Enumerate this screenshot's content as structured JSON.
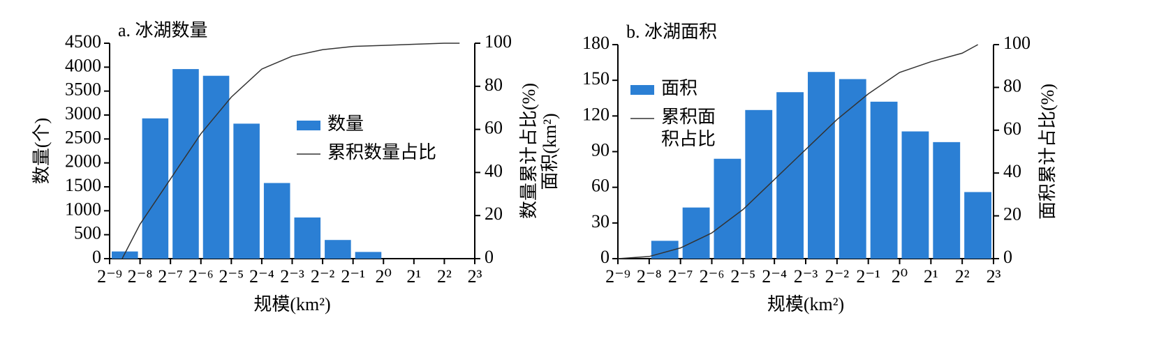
{
  "chart_data": [
    {
      "type": "histogram",
      "title": "a. 冰湖数量",
      "xlabel": "规模(km²)",
      "ylabel": "数量(个)",
      "y2label": "数量累计占比(%)",
      "xscale": "log2",
      "legend": "center right",
      "bins": [
        0.001953125,
        0.00390625,
        0.0078125,
        0.015625,
        0.03125,
        0.0625,
        0.125,
        0.25,
        0.5,
        1,
        2,
        4,
        8
      ],
      "xlim": [
        0.001953125,
        8
      ],
      "xticks": [
        {
          "value": 0.001953125,
          "label": "2⁻⁹"
        },
        {
          "value": 0.00390625,
          "label": "2⁻⁸"
        },
        {
          "value": 0.0078125,
          "label": "2⁻⁷"
        },
        {
          "value": 0.015625,
          "label": "2⁻⁶"
        },
        {
          "value": 0.03125,
          "label": "2⁻⁵"
        },
        {
          "value": 0.0625,
          "label": "2⁻⁴"
        },
        {
          "value": 0.125,
          "label": "2⁻³"
        },
        {
          "value": 0.25,
          "label": "2⁻²"
        },
        {
          "value": 0.5,
          "label": "2⁻¹"
        },
        {
          "value": 1,
          "label": "2⁰"
        },
        {
          "value": 2,
          "label": "2¹"
        },
        {
          "value": 4,
          "label": "2²"
        },
        {
          "value": 8,
          "label": "2³"
        }
      ],
      "ylim": [
        0,
        4500
      ],
      "yticks": [
        0,
        500,
        1000,
        1500,
        2000,
        2500,
        3000,
        3500,
        4000,
        4500
      ],
      "y2lim": [
        0,
        100
      ],
      "y2ticks": [
        0,
        20,
        40,
        60,
        80,
        100
      ],
      "series": [
        {
          "name": "数量",
          "color": "#2b7fd4",
          "values": [
            150,
            2930,
            3960,
            3820,
            2820,
            1580,
            860,
            390,
            140,
            0,
            0,
            0
          ]
        },
        {
          "name": "累积数量占比",
          "color": "#333333",
          "axis": "y2",
          "x": [
            0.0026,
            0.00390625,
            0.0078125,
            0.015625,
            0.03125,
            0.0625,
            0.125,
            0.25,
            0.5,
            1,
            2,
            4,
            5.66
          ],
          "values": [
            0,
            16,
            37,
            58,
            75,
            88,
            94,
            97,
            98.5,
            99,
            99.5,
            100,
            100
          ]
        }
      ]
    },
    {
      "type": "histogram",
      "title": "b. 冰湖面积",
      "xlabel": "规模(km²)",
      "ylabel": "面积(km²)",
      "y2label": "面积累计占比(%)",
      "xscale": "log2",
      "legend": "upper left",
      "bins": [
        0.001953125,
        0.00390625,
        0.0078125,
        0.015625,
        0.03125,
        0.0625,
        0.125,
        0.25,
        0.5,
        1,
        2,
        4,
        8
      ],
      "xlim": [
        0.001953125,
        8
      ],
      "xticks": [
        {
          "value": 0.001953125,
          "label": "2⁻⁹"
        },
        {
          "value": 0.00390625,
          "label": "2⁻⁸"
        },
        {
          "value": 0.0078125,
          "label": "2⁻⁷"
        },
        {
          "value": 0.015625,
          "label": "2⁻⁶"
        },
        {
          "value": 0.03125,
          "label": "2⁻⁵"
        },
        {
          "value": 0.0625,
          "label": "2⁻⁴"
        },
        {
          "value": 0.125,
          "label": "2⁻³"
        },
        {
          "value": 0.25,
          "label": "2⁻²"
        },
        {
          "value": 0.5,
          "label": "2⁻¹"
        },
        {
          "value": 1,
          "label": "2⁰"
        },
        {
          "value": 2,
          "label": "2¹"
        },
        {
          "value": 4,
          "label": "2²"
        },
        {
          "value": 8,
          "label": "2³"
        }
      ],
      "ylim": [
        0,
        180
      ],
      "yticks": [
        0,
        30,
        60,
        90,
        120,
        150,
        180
      ],
      "y2lim": [
        0,
        100
      ],
      "y2ticks": [
        0,
        20,
        40,
        60,
        80,
        100
      ],
      "series": [
        {
          "name": "面积",
          "color": "#2b7fd4",
          "values": [
            0,
            15,
            43,
            84,
            125,
            140,
            157,
            151,
            132,
            107,
            98,
            56
          ]
        },
        {
          "name": "累积面积占比",
          "color": "#333333",
          "axis": "y2",
          "x": [
            0.001953125,
            0.00390625,
            0.0078125,
            0.015625,
            0.03125,
            0.0625,
            0.125,
            0.25,
            0.5,
            1,
            2,
            4,
            5.66
          ],
          "values": [
            0,
            1,
            5,
            12,
            23,
            37,
            51,
            65,
            77,
            87,
            92,
            96,
            100
          ]
        }
      ]
    }
  ]
}
